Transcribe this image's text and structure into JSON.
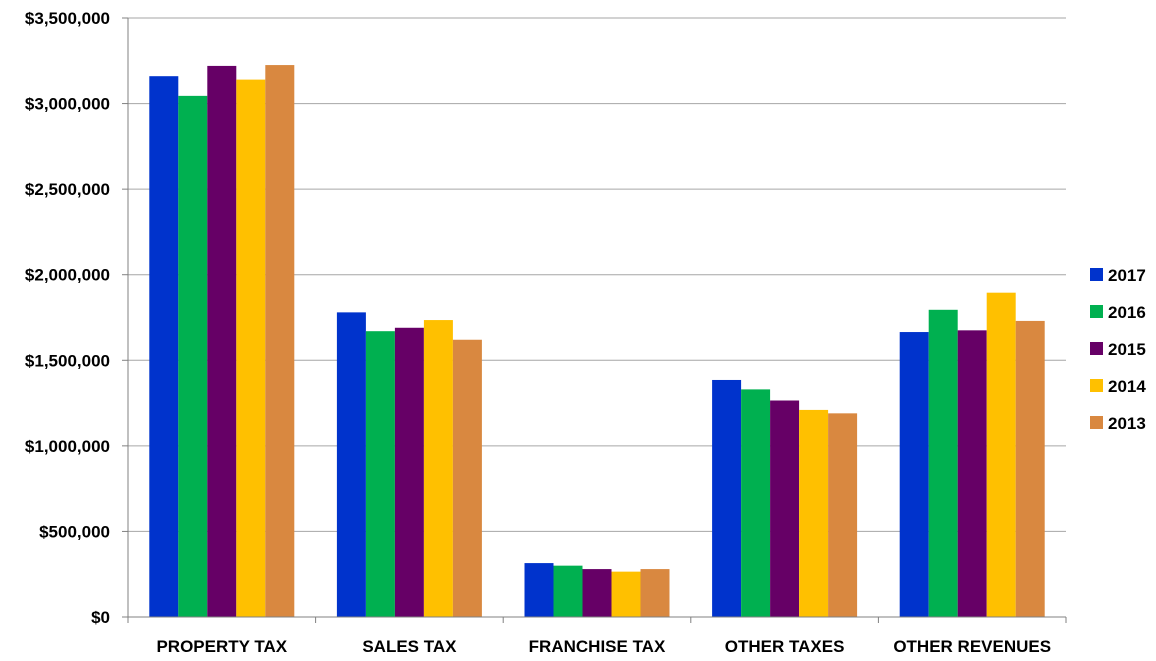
{
  "chart_data": {
    "type": "bar",
    "title": "",
    "xlabel": "",
    "ylabel": "",
    "categories": [
      "PROPERTY TAX",
      "SALES TAX",
      "FRANCHISE TAX",
      "OTHER TAXES",
      "OTHER REVENUES"
    ],
    "series": [
      {
        "name": "2017",
        "color": "#0033CC",
        "values": [
          3160000,
          1780000,
          315000,
          1385000,
          1665000
        ]
      },
      {
        "name": "2016",
        "color": "#00B050",
        "values": [
          3045000,
          1670000,
          300000,
          1330000,
          1795000
        ]
      },
      {
        "name": "2015",
        "color": "#660066",
        "values": [
          3220000,
          1690000,
          280000,
          1265000,
          1675000
        ]
      },
      {
        "name": "2014",
        "color": "#FFC000",
        "values": [
          3140000,
          1735000,
          265000,
          1210000,
          1895000
        ]
      },
      {
        "name": "2013",
        "color": "#D98840",
        "values": [
          3225000,
          1620000,
          280000,
          1190000,
          1730000
        ]
      }
    ],
    "ylim": [
      0,
      3500000
    ],
    "y_ticks": [
      0,
      500000,
      1000000,
      1500000,
      2000000,
      2500000,
      3000000,
      3500000
    ],
    "y_tick_labels": [
      "$0",
      "$500,000",
      "$1,000,000",
      "$1,500,000",
      "$2,000,000",
      "$2,500,000",
      "$3,000,000",
      "$3,500,000"
    ],
    "grid": true,
    "legend_position": "right"
  }
}
